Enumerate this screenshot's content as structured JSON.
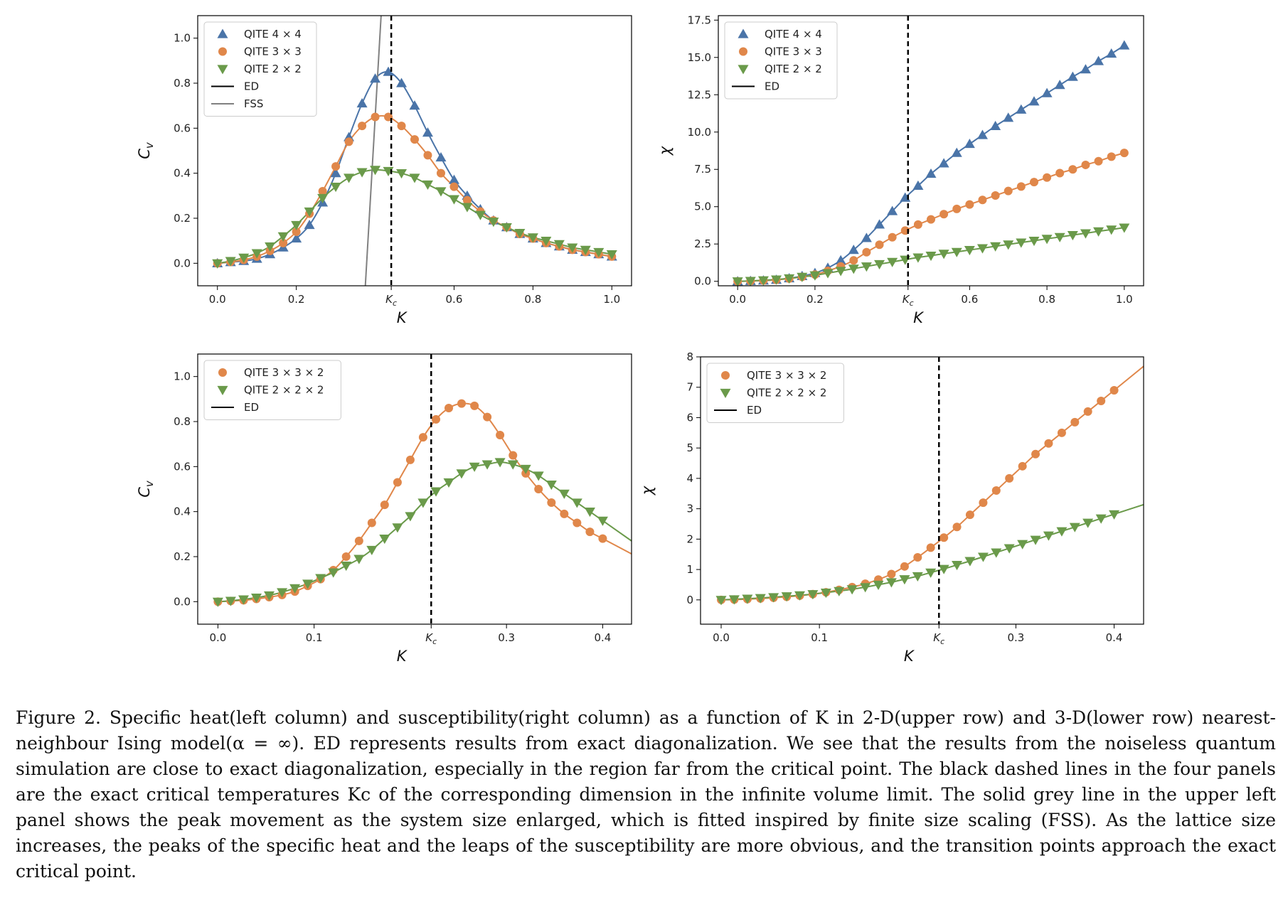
{
  "caption": "Figure 2. Specific heat(left column) and susceptibility(right column) as a function of K in 2-D(upper row) and 3-D(lower row) nearest-neighbour Ising model(α = ∞). ED represents results from exact diagonalization. We see that the results from the noiseless quantum simulation are close to exact diagonalization, especially in the region far from the critical point. The black dashed lines in the four panels are the exact critical temperatures Kc of the corresponding dimension in the infinite volume limit. The solid grey line in the upper left panel shows the peak movement as the system size enlarged, which is fitted inspired by finite size scaling (FSS). As the lattice size increases, the peaks of the specific heat and the leaps of the susceptibility are more obvious, and the transition points approach the exact critical point.",
  "colors": {
    "blue": "#4a74a8",
    "orange": "#e0874a",
    "green": "#6a9a4a",
    "black": "#000000",
    "grey": "#808080"
  },
  "chart_data": [
    {
      "type": "scatter",
      "panel": "upper-left",
      "xlabel": "K",
      "ylabel": "Cv",
      "xlim": [
        -0.05,
        1.05
      ],
      "ylim": [
        -0.1,
        1.1
      ],
      "xticks": [
        "0.0",
        "0.2",
        "0.6",
        "0.8",
        "1.0"
      ],
      "xtick_values": [
        0.0,
        0.2,
        0.6,
        0.8,
        1.0
      ],
      "yticks": [
        "0.0",
        "0.2",
        "0.4",
        "0.6",
        "0.8",
        "1.0"
      ],
      "ytick_values": [
        0.0,
        0.2,
        0.4,
        0.6,
        0.8,
        1.0
      ],
      "kc_label": "Kc",
      "kc": 0.4407,
      "legend_position": "top-left",
      "series": [
        {
          "name": "QITE 4 × 4",
          "marker": "triangle-up",
          "color": "#4a74a8",
          "x": [
            0.0,
            0.0333,
            0.0667,
            0.1,
            0.1333,
            0.1667,
            0.2,
            0.2333,
            0.2667,
            0.3,
            0.3333,
            0.3667,
            0.4,
            0.4333,
            0.4667,
            0.5,
            0.5333,
            0.5667,
            0.6,
            0.6333,
            0.6667,
            0.7,
            0.7333,
            0.7667,
            0.8,
            0.8333,
            0.8667,
            0.9,
            0.9333,
            0.9667,
            1.0
          ],
          "y": [
            0.0,
            0.005,
            0.01,
            0.02,
            0.04,
            0.07,
            0.11,
            0.17,
            0.27,
            0.4,
            0.56,
            0.71,
            0.82,
            0.85,
            0.8,
            0.7,
            0.58,
            0.47,
            0.37,
            0.3,
            0.24,
            0.19,
            0.16,
            0.13,
            0.11,
            0.09,
            0.075,
            0.06,
            0.05,
            0.04,
            0.03
          ]
        },
        {
          "name": "QITE 3 × 3",
          "marker": "circle",
          "color": "#e0874a",
          "x": [
            0.0,
            0.0333,
            0.0667,
            0.1,
            0.1333,
            0.1667,
            0.2,
            0.2333,
            0.2667,
            0.3,
            0.3333,
            0.3667,
            0.4,
            0.4333,
            0.4667,
            0.5,
            0.5333,
            0.5667,
            0.6,
            0.6333,
            0.6667,
            0.7,
            0.7333,
            0.7667,
            0.8,
            0.8333,
            0.8667,
            0.9,
            0.9333,
            0.9667,
            1.0
          ],
          "y": [
            0.0,
            0.006,
            0.015,
            0.03,
            0.055,
            0.09,
            0.14,
            0.22,
            0.32,
            0.43,
            0.54,
            0.61,
            0.65,
            0.65,
            0.61,
            0.55,
            0.48,
            0.4,
            0.34,
            0.28,
            0.23,
            0.19,
            0.16,
            0.13,
            0.11,
            0.09,
            0.075,
            0.06,
            0.05,
            0.04,
            0.03
          ]
        },
        {
          "name": "QITE 2 × 2",
          "marker": "triangle-down",
          "color": "#6a9a4a",
          "x": [
            0.0,
            0.0333,
            0.0667,
            0.1,
            0.1333,
            0.1667,
            0.2,
            0.2333,
            0.2667,
            0.3,
            0.3333,
            0.3667,
            0.4,
            0.4333,
            0.4667,
            0.5,
            0.5333,
            0.5667,
            0.6,
            0.6333,
            0.6667,
            0.7,
            0.7333,
            0.7667,
            0.8,
            0.8333,
            0.8667,
            0.9,
            0.9333,
            0.9667,
            1.0
          ],
          "y": [
            0.0,
            0.01,
            0.025,
            0.045,
            0.075,
            0.12,
            0.17,
            0.23,
            0.29,
            0.34,
            0.38,
            0.405,
            0.415,
            0.41,
            0.4,
            0.38,
            0.35,
            0.32,
            0.285,
            0.25,
            0.215,
            0.185,
            0.16,
            0.135,
            0.115,
            0.1,
            0.085,
            0.07,
            0.06,
            0.05,
            0.04
          ]
        },
        {
          "name": "ED",
          "marker": "none",
          "line": "solid",
          "color": "#000000"
        },
        {
          "name": "FSS",
          "marker": "none",
          "line": "solid",
          "color": "#808080",
          "x": [
            0.375,
            0.415
          ],
          "y": [
            -0.1,
            1.1
          ]
        }
      ]
    },
    {
      "type": "scatter",
      "panel": "upper-right",
      "xlabel": "K",
      "ylabel": "χ",
      "xlim": [
        -0.05,
        1.05
      ],
      "ylim": [
        -0.3,
        17.8
      ],
      "xticks": [
        "0.0",
        "0.2",
        "0.6",
        "0.8",
        "1.0"
      ],
      "xtick_values": [
        0.0,
        0.2,
        0.6,
        0.8,
        1.0
      ],
      "yticks": [
        "0.0",
        "2.5",
        "5.0",
        "7.5",
        "10.0",
        "12.5",
        "15.0",
        "17.5"
      ],
      "ytick_values": [
        0.0,
        2.5,
        5.0,
        7.5,
        10.0,
        12.5,
        15.0,
        17.5
      ],
      "kc_label": "Kc",
      "kc": 0.4407,
      "legend_position": "top-left",
      "series": [
        {
          "name": "QITE 4 × 4",
          "marker": "triangle-up",
          "color": "#4a74a8",
          "x": [
            0.0,
            0.0333,
            0.0667,
            0.1,
            0.1333,
            0.1667,
            0.2,
            0.2333,
            0.2667,
            0.3,
            0.3333,
            0.3667,
            0.4,
            0.4333,
            0.4667,
            0.5,
            0.5333,
            0.5667,
            0.6,
            0.6333,
            0.6667,
            0.7,
            0.7333,
            0.7667,
            0.8,
            0.8333,
            0.8667,
            0.9,
            0.9333,
            0.9667,
            1.0
          ],
          "y": [
            0.0,
            0.02,
            0.05,
            0.1,
            0.2,
            0.35,
            0.55,
            0.9,
            1.4,
            2.1,
            2.9,
            3.8,
            4.7,
            5.6,
            6.4,
            7.2,
            7.9,
            8.6,
            9.2,
            9.8,
            10.4,
            10.95,
            11.5,
            12.05,
            12.6,
            13.15,
            13.7,
            14.2,
            14.75,
            15.25,
            15.8
          ]
        },
        {
          "name": "QITE 3 × 3",
          "marker": "circle",
          "color": "#e0874a",
          "x": [
            0.0,
            0.0333,
            0.0667,
            0.1,
            0.1333,
            0.1667,
            0.2,
            0.2333,
            0.2667,
            0.3,
            0.3333,
            0.3667,
            0.4,
            0.4333,
            0.4667,
            0.5,
            0.5333,
            0.5667,
            0.6,
            0.6333,
            0.6667,
            0.7,
            0.7333,
            0.7667,
            0.8,
            0.8333,
            0.8667,
            0.9,
            0.9333,
            0.9667,
            1.0
          ],
          "y": [
            0.0,
            0.02,
            0.05,
            0.1,
            0.18,
            0.3,
            0.45,
            0.7,
            1.0,
            1.4,
            1.95,
            2.45,
            2.95,
            3.4,
            3.8,
            4.15,
            4.5,
            4.85,
            5.15,
            5.45,
            5.75,
            6.05,
            6.35,
            6.65,
            6.95,
            7.25,
            7.5,
            7.8,
            8.05,
            8.35,
            8.6
          ]
        },
        {
          "name": "QITE 2 × 2",
          "marker": "triangle-down",
          "color": "#6a9a4a",
          "x": [
            0.0,
            0.0333,
            0.0667,
            0.1,
            0.1333,
            0.1667,
            0.2,
            0.2333,
            0.2667,
            0.3,
            0.3333,
            0.3667,
            0.4,
            0.4333,
            0.4667,
            0.5,
            0.5333,
            0.5667,
            0.6,
            0.6333,
            0.6667,
            0.7,
            0.7333,
            0.7667,
            0.8,
            0.8333,
            0.8667,
            0.9,
            0.9333,
            0.9667,
            1.0
          ],
          "y": [
            0.0,
            0.03,
            0.07,
            0.12,
            0.2,
            0.3,
            0.4,
            0.55,
            0.7,
            0.85,
            1.0,
            1.15,
            1.3,
            1.45,
            1.6,
            1.72,
            1.85,
            1.97,
            2.1,
            2.22,
            2.35,
            2.47,
            2.6,
            2.72,
            2.85,
            2.97,
            3.1,
            3.22,
            3.35,
            3.47,
            3.6
          ]
        },
        {
          "name": "ED",
          "marker": "none",
          "line": "solid",
          "color": "#000000"
        }
      ]
    },
    {
      "type": "scatter",
      "panel": "lower-left",
      "xlabel": "K",
      "ylabel": "Cv",
      "xlim": [
        -0.021,
        0.43
      ],
      "ylim": [
        -0.1,
        1.1
      ],
      "xticks": [
        "0.0",
        "0.1",
        "0.3",
        "0.4"
      ],
      "xtick_values": [
        0.0,
        0.1,
        0.3,
        0.4
      ],
      "yticks": [
        "0.0",
        "0.2",
        "0.4",
        "0.6",
        "0.8",
        "1.0"
      ],
      "ytick_values": [
        0.0,
        0.2,
        0.4,
        0.6,
        0.8,
        1.0
      ],
      "kc_label": "Kc",
      "kc": 0.2217,
      "legend_position": "top-left",
      "series": [
        {
          "name": "QITE 3 × 3 × 2",
          "marker": "circle",
          "color": "#e0874a",
          "x": [
            0.0,
            0.0133,
            0.0267,
            0.04,
            0.0533,
            0.0667,
            0.08,
            0.0933,
            0.1067,
            0.12,
            0.1333,
            0.1467,
            0.16,
            0.1733,
            0.1867,
            0.2,
            0.2133,
            0.2267,
            0.24,
            0.2533,
            0.2667,
            0.28,
            0.2933,
            0.3067,
            0.32,
            0.3333,
            0.3467,
            0.36,
            0.3733,
            0.3867,
            0.4
          ],
          "y": [
            0.0,
            0.003,
            0.006,
            0.012,
            0.02,
            0.03,
            0.045,
            0.07,
            0.1,
            0.14,
            0.2,
            0.27,
            0.35,
            0.43,
            0.53,
            0.63,
            0.73,
            0.81,
            0.86,
            0.88,
            0.87,
            0.82,
            0.74,
            0.65,
            0.57,
            0.5,
            0.44,
            0.39,
            0.35,
            0.31,
            0.28
          ]
        },
        {
          "name": "QITE 2 × 2 × 2",
          "marker": "triangle-down",
          "color": "#6a9a4a",
          "x": [
            0.0,
            0.0133,
            0.0267,
            0.04,
            0.0533,
            0.0667,
            0.08,
            0.0933,
            0.1067,
            0.12,
            0.1333,
            0.1467,
            0.16,
            0.1733,
            0.1867,
            0.2,
            0.2133,
            0.2267,
            0.24,
            0.2533,
            0.2667,
            0.28,
            0.2933,
            0.3067,
            0.32,
            0.3333,
            0.3467,
            0.36,
            0.3733,
            0.3867,
            0.4
          ],
          "y": [
            0.0,
            0.004,
            0.01,
            0.018,
            0.028,
            0.042,
            0.06,
            0.08,
            0.105,
            0.13,
            0.16,
            0.19,
            0.23,
            0.28,
            0.33,
            0.38,
            0.44,
            0.49,
            0.53,
            0.57,
            0.6,
            0.61,
            0.62,
            0.61,
            0.59,
            0.56,
            0.52,
            0.48,
            0.44,
            0.4,
            0.36
          ]
        },
        {
          "name": "ED",
          "marker": "none",
          "line": "solid",
          "color": "#000000"
        }
      ]
    },
    {
      "type": "scatter",
      "panel": "lower-right",
      "xlabel": "K",
      "ylabel": "χ",
      "xlim": [
        -0.021,
        0.43
      ],
      "ylim": [
        -0.8,
        8.0
      ],
      "xticks": [
        "0.0",
        "0.1",
        "0.3",
        "0.4"
      ],
      "xtick_values": [
        0.0,
        0.1,
        0.3,
        0.4
      ],
      "yticks": [
        "0",
        "1",
        "2",
        "3",
        "4",
        "5",
        "6",
        "7",
        "8"
      ],
      "ytick_values": [
        0,
        1,
        2,
        3,
        4,
        5,
        6,
        7,
        8
      ],
      "kc_label": "Kc",
      "kc": 0.2217,
      "legend_position": "top-left",
      "series": [
        {
          "name": "QITE 3 × 3 × 2",
          "marker": "circle",
          "color": "#e0874a",
          "x": [
            0.0,
            0.0133,
            0.0267,
            0.04,
            0.0533,
            0.0667,
            0.08,
            0.0933,
            0.1067,
            0.12,
            0.1333,
            0.1467,
            0.16,
            0.1733,
            0.1867,
            0.2,
            0.2133,
            0.2267,
            0.24,
            0.2533,
            0.2667,
            0.28,
            0.2933,
            0.3067,
            0.32,
            0.3333,
            0.3467,
            0.36,
            0.3733,
            0.3867,
            0.4
          ],
          "y": [
            0.0,
            0.01,
            0.025,
            0.045,
            0.07,
            0.1,
            0.14,
            0.19,
            0.25,
            0.33,
            0.42,
            0.53,
            0.67,
            0.85,
            1.1,
            1.4,
            1.72,
            2.05,
            2.4,
            2.8,
            3.2,
            3.6,
            4.0,
            4.4,
            4.8,
            5.15,
            5.5,
            5.85,
            6.2,
            6.55,
            6.9
          ]
        },
        {
          "name": "QITE 2 × 2 × 2",
          "marker": "triangle-down",
          "color": "#6a9a4a",
          "x": [
            0.0,
            0.0133,
            0.0267,
            0.04,
            0.0533,
            0.0667,
            0.08,
            0.0933,
            0.1067,
            0.12,
            0.1333,
            0.1467,
            0.16,
            0.1733,
            0.1867,
            0.2,
            0.2133,
            0.2267,
            0.24,
            0.2533,
            0.2667,
            0.28,
            0.2933,
            0.3067,
            0.32,
            0.3333,
            0.3467,
            0.36,
            0.3733,
            0.3867,
            0.4
          ],
          "y": [
            0.0,
            0.02,
            0.04,
            0.06,
            0.09,
            0.12,
            0.15,
            0.19,
            0.24,
            0.29,
            0.35,
            0.42,
            0.5,
            0.58,
            0.68,
            0.78,
            0.9,
            1.02,
            1.15,
            1.28,
            1.42,
            1.56,
            1.7,
            1.84,
            1.98,
            2.12,
            2.26,
            2.4,
            2.54,
            2.68,
            2.82
          ]
        },
        {
          "name": "ED",
          "marker": "none",
          "line": "solid",
          "color": "#000000"
        }
      ]
    }
  ]
}
